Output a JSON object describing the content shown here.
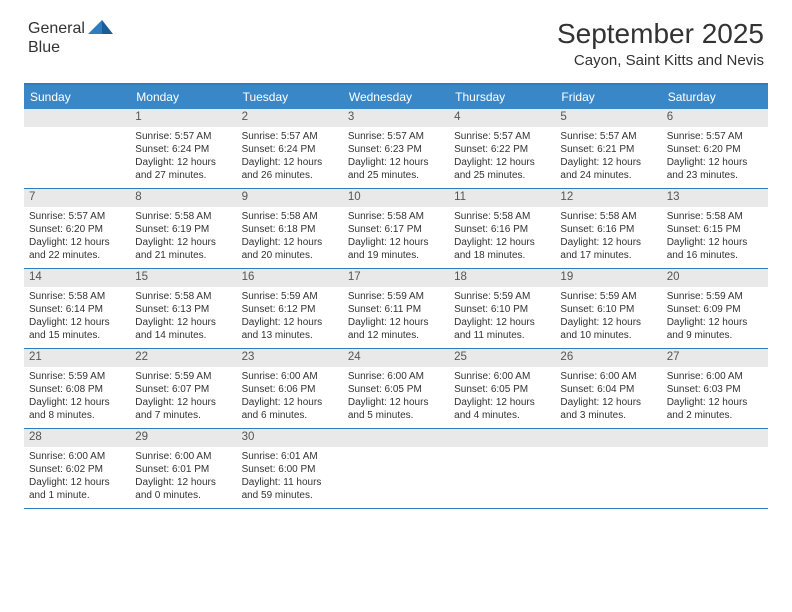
{
  "brand": {
    "word1": "General",
    "word2": "Blue"
  },
  "title": "September 2025",
  "location": "Cayon, Saint Kitts and Nevis",
  "colors": {
    "header_bg": "#3a87c8",
    "border": "#2f7dc0",
    "daynum_bg": "#e9e9e9",
    "text": "#333333",
    "logo_gray": "#6b6b6b",
    "logo_blue": "#2f7dc0"
  },
  "weekdays": [
    "Sunday",
    "Monday",
    "Tuesday",
    "Wednesday",
    "Thursday",
    "Friday",
    "Saturday"
  ],
  "weeks": [
    [
      {
        "n": "",
        "lines": []
      },
      {
        "n": "1",
        "lines": [
          "Sunrise: 5:57 AM",
          "Sunset: 6:24 PM",
          "Daylight: 12 hours",
          "and 27 minutes."
        ]
      },
      {
        "n": "2",
        "lines": [
          "Sunrise: 5:57 AM",
          "Sunset: 6:24 PM",
          "Daylight: 12 hours",
          "and 26 minutes."
        ]
      },
      {
        "n": "3",
        "lines": [
          "Sunrise: 5:57 AM",
          "Sunset: 6:23 PM",
          "Daylight: 12 hours",
          "and 25 minutes."
        ]
      },
      {
        "n": "4",
        "lines": [
          "Sunrise: 5:57 AM",
          "Sunset: 6:22 PM",
          "Daylight: 12 hours",
          "and 25 minutes."
        ]
      },
      {
        "n": "5",
        "lines": [
          "Sunrise: 5:57 AM",
          "Sunset: 6:21 PM",
          "Daylight: 12 hours",
          "and 24 minutes."
        ]
      },
      {
        "n": "6",
        "lines": [
          "Sunrise: 5:57 AM",
          "Sunset: 6:20 PM",
          "Daylight: 12 hours",
          "and 23 minutes."
        ]
      }
    ],
    [
      {
        "n": "7",
        "lines": [
          "Sunrise: 5:57 AM",
          "Sunset: 6:20 PM",
          "Daylight: 12 hours",
          "and 22 minutes."
        ]
      },
      {
        "n": "8",
        "lines": [
          "Sunrise: 5:58 AM",
          "Sunset: 6:19 PM",
          "Daylight: 12 hours",
          "and 21 minutes."
        ]
      },
      {
        "n": "9",
        "lines": [
          "Sunrise: 5:58 AM",
          "Sunset: 6:18 PM",
          "Daylight: 12 hours",
          "and 20 minutes."
        ]
      },
      {
        "n": "10",
        "lines": [
          "Sunrise: 5:58 AM",
          "Sunset: 6:17 PM",
          "Daylight: 12 hours",
          "and 19 minutes."
        ]
      },
      {
        "n": "11",
        "lines": [
          "Sunrise: 5:58 AM",
          "Sunset: 6:16 PM",
          "Daylight: 12 hours",
          "and 18 minutes."
        ]
      },
      {
        "n": "12",
        "lines": [
          "Sunrise: 5:58 AM",
          "Sunset: 6:16 PM",
          "Daylight: 12 hours",
          "and 17 minutes."
        ]
      },
      {
        "n": "13",
        "lines": [
          "Sunrise: 5:58 AM",
          "Sunset: 6:15 PM",
          "Daylight: 12 hours",
          "and 16 minutes."
        ]
      }
    ],
    [
      {
        "n": "14",
        "lines": [
          "Sunrise: 5:58 AM",
          "Sunset: 6:14 PM",
          "Daylight: 12 hours",
          "and 15 minutes."
        ]
      },
      {
        "n": "15",
        "lines": [
          "Sunrise: 5:58 AM",
          "Sunset: 6:13 PM",
          "Daylight: 12 hours",
          "and 14 minutes."
        ]
      },
      {
        "n": "16",
        "lines": [
          "Sunrise: 5:59 AM",
          "Sunset: 6:12 PM",
          "Daylight: 12 hours",
          "and 13 minutes."
        ]
      },
      {
        "n": "17",
        "lines": [
          "Sunrise: 5:59 AM",
          "Sunset: 6:11 PM",
          "Daylight: 12 hours",
          "and 12 minutes."
        ]
      },
      {
        "n": "18",
        "lines": [
          "Sunrise: 5:59 AM",
          "Sunset: 6:10 PM",
          "Daylight: 12 hours",
          "and 11 minutes."
        ]
      },
      {
        "n": "19",
        "lines": [
          "Sunrise: 5:59 AM",
          "Sunset: 6:10 PM",
          "Daylight: 12 hours",
          "and 10 minutes."
        ]
      },
      {
        "n": "20",
        "lines": [
          "Sunrise: 5:59 AM",
          "Sunset: 6:09 PM",
          "Daylight: 12 hours",
          "and 9 minutes."
        ]
      }
    ],
    [
      {
        "n": "21",
        "lines": [
          "Sunrise: 5:59 AM",
          "Sunset: 6:08 PM",
          "Daylight: 12 hours",
          "and 8 minutes."
        ]
      },
      {
        "n": "22",
        "lines": [
          "Sunrise: 5:59 AM",
          "Sunset: 6:07 PM",
          "Daylight: 12 hours",
          "and 7 minutes."
        ]
      },
      {
        "n": "23",
        "lines": [
          "Sunrise: 6:00 AM",
          "Sunset: 6:06 PM",
          "Daylight: 12 hours",
          "and 6 minutes."
        ]
      },
      {
        "n": "24",
        "lines": [
          "Sunrise: 6:00 AM",
          "Sunset: 6:05 PM",
          "Daylight: 12 hours",
          "and 5 minutes."
        ]
      },
      {
        "n": "25",
        "lines": [
          "Sunrise: 6:00 AM",
          "Sunset: 6:05 PM",
          "Daylight: 12 hours",
          "and 4 minutes."
        ]
      },
      {
        "n": "26",
        "lines": [
          "Sunrise: 6:00 AM",
          "Sunset: 6:04 PM",
          "Daylight: 12 hours",
          "and 3 minutes."
        ]
      },
      {
        "n": "27",
        "lines": [
          "Sunrise: 6:00 AM",
          "Sunset: 6:03 PM",
          "Daylight: 12 hours",
          "and 2 minutes."
        ]
      }
    ],
    [
      {
        "n": "28",
        "lines": [
          "Sunrise: 6:00 AM",
          "Sunset: 6:02 PM",
          "Daylight: 12 hours",
          "and 1 minute."
        ]
      },
      {
        "n": "29",
        "lines": [
          "Sunrise: 6:00 AM",
          "Sunset: 6:01 PM",
          "Daylight: 12 hours",
          "and 0 minutes."
        ]
      },
      {
        "n": "30",
        "lines": [
          "Sunrise: 6:01 AM",
          "Sunset: 6:00 PM",
          "Daylight: 11 hours",
          "and 59 minutes."
        ]
      },
      {
        "n": "",
        "lines": []
      },
      {
        "n": "",
        "lines": []
      },
      {
        "n": "",
        "lines": []
      },
      {
        "n": "",
        "lines": []
      }
    ]
  ]
}
